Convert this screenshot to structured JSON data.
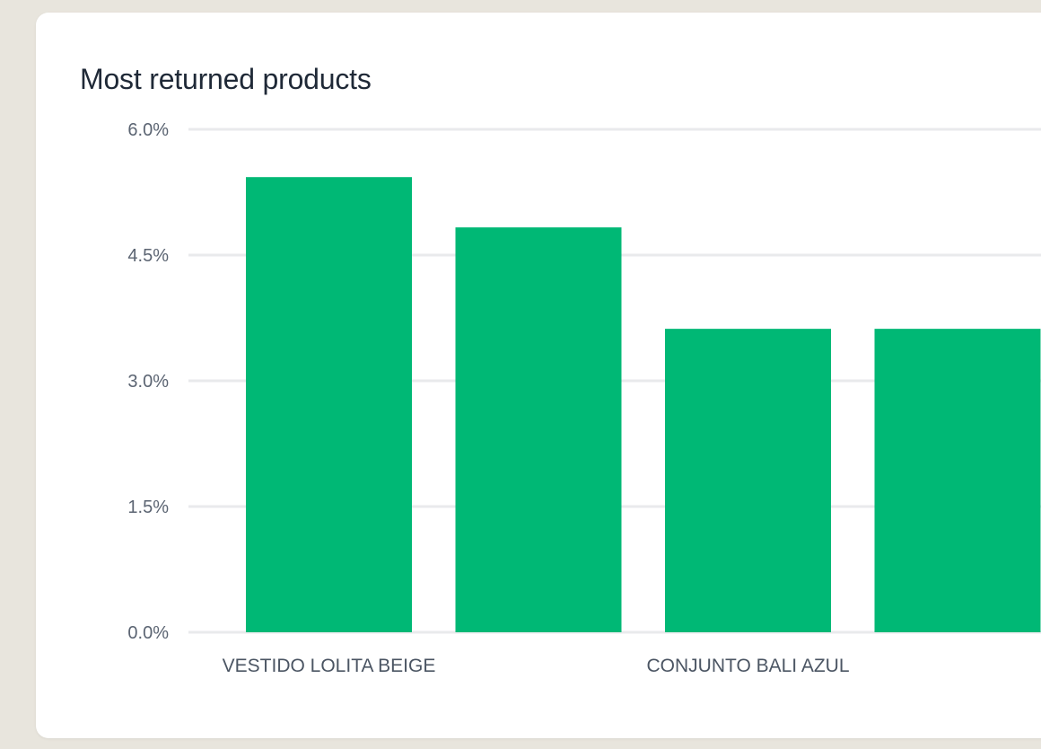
{
  "card": {
    "title": "Most returned products"
  },
  "colors": {
    "bar": "#00b875",
    "grid": "#e9eaec"
  },
  "chart_data": {
    "type": "bar",
    "title": "Most returned products",
    "categories": [
      "VESTIDO LOLITA BEIGE",
      "",
      "CONJUNTO BALI AZUL",
      ""
    ],
    "values": [
      5.43,
      4.83,
      3.62,
      3.62
    ],
    "ylim": [
      0,
      6
    ],
    "yticks": [
      "0.0%",
      "1.5%",
      "3.0%",
      "4.5%",
      "6.0%"
    ],
    "ytick_values": [
      0,
      1.5,
      3,
      4.5,
      6
    ],
    "grid": true
  }
}
